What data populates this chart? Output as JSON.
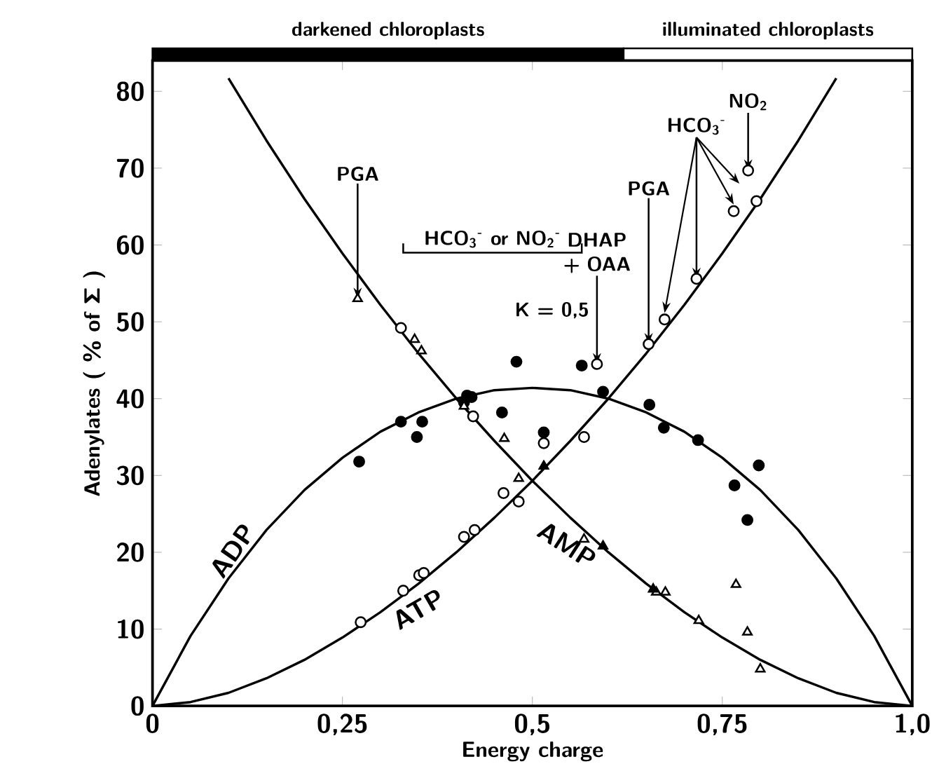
{
  "chart_data": {
    "type": "scatter",
    "xlabel": "Energy charge",
    "ylabel": "Adenylates  ( % of Σ )",
    "xlim": [
      0,
      1
    ],
    "ylim": [
      0,
      84
    ],
    "xticks": [
      0,
      {
        "value": 0.25,
        "label": "0,25"
      },
      {
        "value": 0.5,
        "label": "0,5"
      },
      {
        "value": 0.75,
        "label": "0,75"
      },
      {
        "value": 1,
        "label": "1,0"
      }
    ],
    "yticks": [
      0,
      10,
      20,
      30,
      40,
      50,
      60,
      70,
      80
    ],
    "annotations": [
      {
        "text": "PGA",
        "x": 0.27,
        "y": 53
      },
      "HCO$_{3}$$^{-}$ or NO$_{2}$$^{-}$",
      {
        "text": "DHAP + OAA",
        "x": 0.585,
        "y": 44.5
      },
      "K = 0,5",
      {
        "text": "PGA",
        "x": 0.653,
        "y": 47.1
      },
      {
        "text": "HCO$_{3}$$^{-}$",
        "x": 0.716,
        "y": 55.6
      },
      {
        "text": "NO$_{2}$",
        "x": 0.784,
        "y": 69.7
      },
      "darkened  chloroplasts",
      "illuminated  chloroplasts"
    ],
    "series": [
      {
        "name": "ADP",
        "type": "line",
        "color": "#000000",
        "x": [
          0,
          0.05,
          0.1,
          0.15,
          0.2,
          0.25,
          0.3,
          0.35,
          0.4,
          0.45,
          0.5,
          0.55,
          0.6,
          0.65,
          0.7,
          0.75,
          0.8,
          0.85,
          0.9,
          0.95,
          1
        ],
        "values": [
          0,
          9.1,
          16.6,
          22.9,
          28.1,
          32.3,
          35.7,
          38.2,
          40,
          41.1,
          41.4,
          41.1,
          40,
          38.2,
          35.7,
          32.3,
          28.1,
          22.9,
          16.6,
          9.1,
          0
        ]
      },
      {
        "name": "ATP",
        "type": "line",
        "color": "#000000",
        "x": [
          0,
          0.05,
          0.1,
          0.15,
          0.2,
          0.25,
          0.3,
          0.35,
          0.4,
          0.45,
          0.5,
          0.55,
          0.6,
          0.65,
          0.7,
          0.75,
          0.8,
          0.85,
          0.9
        ],
        "values": [
          0,
          0.5,
          1.7,
          3.6,
          6,
          8.9,
          12.2,
          15.9,
          20,
          24.5,
          29.3,
          34.5,
          40,
          45.9,
          52.2,
          58.9,
          66,
          73.6,
          81.7
        ]
      },
      {
        "name": "AMP",
        "type": "line",
        "color": "#000000",
        "x": [
          0.1,
          0.15,
          0.2,
          0.25,
          0.3,
          0.35,
          0.4,
          0.45,
          0.5,
          0.55,
          0.6,
          0.65,
          0.7,
          0.75,
          0.8,
          0.85,
          0.9,
          0.95,
          1
        ],
        "values": [
          81.7,
          73.6,
          66,
          58.9,
          52.2,
          45.9,
          40,
          34.5,
          29.3,
          24.5,
          20,
          15.9,
          12.2,
          8.9,
          6,
          3.6,
          1.7,
          0.5,
          0
        ]
      },
      {
        "marker": "circle",
        "color": "#000000",
        "x": [
          0.272,
          0.327,
          0.348,
          0.355,
          0.41,
          0.414,
          0.42,
          0.46,
          0.479,
          0.515,
          0.565,
          0.593,
          0.654,
          0.673,
          0.718,
          0.766,
          0.783,
          0.798
        ],
        "values": [
          31.8,
          37,
          35,
          37,
          39.5,
          40.4,
          40.2,
          38.2,
          44.8,
          35.6,
          44.3,
          40.9,
          39.2,
          36.2,
          34.6,
          28.7,
          24.2,
          31.3
        ]
      },
      {
        "marker": "circle",
        "color": "#ffffff",
        "x": [
          0.274,
          0.33,
          0.351,
          0.357,
          0.41,
          0.424,
          0.462,
          0.482,
          0.515,
          0.568,
          0.585,
          0.653,
          0.674,
          0.716,
          0.765,
          0.784,
          0.795,
          0.327,
          0.422
        ],
        "values": [
          10.9,
          15,
          17,
          17.3,
          22,
          22.9,
          27.7,
          26.6,
          34.2,
          35,
          44.5,
          47.1,
          50.3,
          55.6,
          64.4,
          69.7,
          65.7,
          49.2,
          37.7
        ]
      },
      {
        "marker": "triangle",
        "color": "#ffffff",
        "x": [
          0.27,
          0.345,
          0.354,
          0.41,
          0.463,
          0.482,
          0.568,
          0.663,
          0.675,
          0.719,
          0.768,
          0.783,
          0.8
        ],
        "values": [
          53,
          47.7,
          46.2,
          39,
          34.8,
          29.6,
          21.7,
          14.8,
          14.8,
          11.1,
          15.8,
          9.6,
          4.8
        ]
      },
      {
        "marker": "triangle",
        "color": "#000000",
        "x": [
          0.515,
          0.593,
          0.659
        ],
        "values": [
          31.2,
          20.8,
          15.2
        ]
      }
    ]
  }
}
